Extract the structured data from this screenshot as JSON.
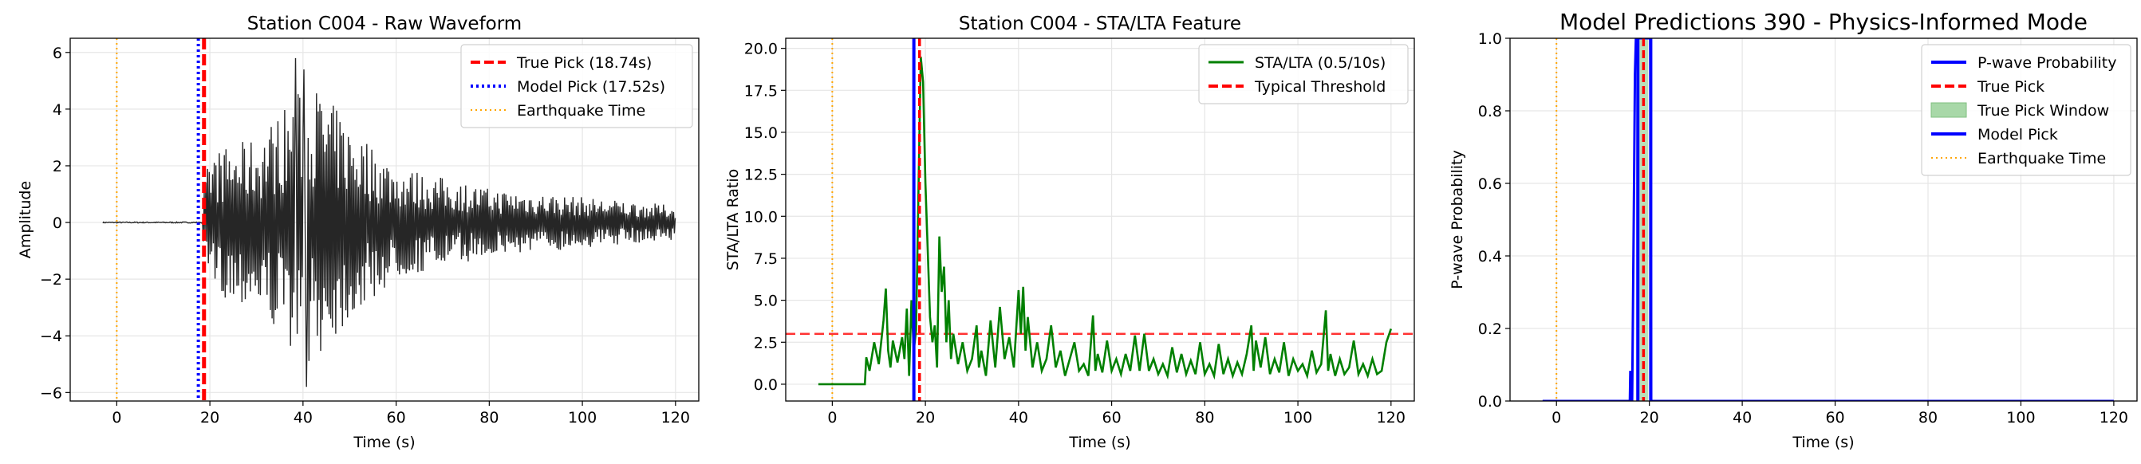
{
  "colors": {
    "raw": "#262626",
    "sta": "#008000",
    "prob": "#0000ff",
    "true_pick": "#ff0000",
    "model_pick_dotted": "#0000ff",
    "eq": "#ffa500",
    "threshold": "#ff3333",
    "window_fill": "#a8d8a8",
    "grid": "#e6e6e6"
  },
  "chart_data": [
    {
      "type": "line",
      "title": "Station C004 - Raw Waveform",
      "xlabel": "Time (s)",
      "ylabel": "Amplitude",
      "xlim": [
        -10,
        125
      ],
      "ylim": [
        -6.3,
        6.5
      ],
      "xticks": [
        0,
        20,
        40,
        60,
        80,
        100,
        120
      ],
      "yticks": [
        -6,
        -4,
        -2,
        0,
        2,
        4,
        6
      ],
      "grid": true,
      "legend_position": "top-right",
      "legend": [
        {
          "label": "True Pick (18.74s)",
          "style": "dashed-red"
        },
        {
          "label": "Model Pick (17.52s)",
          "style": "dotted-blue"
        },
        {
          "label": "Earthquake Time",
          "style": "dotted-orange"
        }
      ],
      "vlines": {
        "true_pick": 18.74,
        "model_pick": 17.52,
        "earthquake": 0
      },
      "series": [
        {
          "name": "Raw Waveform",
          "x_start": -3,
          "x_end": 120,
          "noise_until": 18.5,
          "envelope": [
            [
              18.5,
              0.8
            ],
            [
              20,
              2.5
            ],
            [
              30,
              3.0
            ],
            [
              38,
              4.5
            ],
            [
              42,
              5.0
            ],
            [
              50,
              3.5
            ],
            [
              60,
              2.0
            ],
            [
              80,
              1.2
            ],
            [
              100,
              0.9
            ],
            [
              120,
              0.6
            ]
          ],
          "peaks": [
            [
              40.7,
              -5.8
            ],
            [
              38.4,
              5.8
            ],
            [
              40.2,
              5.4
            ]
          ]
        }
      ]
    },
    {
      "type": "line",
      "title": "Station C004 - STA/LTA Feature",
      "xlabel": "Time (s)",
      "ylabel": "STA/LTA Ratio",
      "xlim": [
        -10,
        125
      ],
      "ylim": [
        -1.0,
        20.6
      ],
      "xticks": [
        0,
        20,
        40,
        60,
        80,
        100,
        120
      ],
      "yticks": [
        0.0,
        2.5,
        5.0,
        7.5,
        10.0,
        12.5,
        15.0,
        17.5,
        20.0
      ],
      "ytick_labels": [
        "0.0",
        "2.5",
        "5.0",
        "7.5",
        "10.0",
        "12.5",
        "15.0",
        "17.5",
        "20.0"
      ],
      "grid": true,
      "legend_position": "top-right",
      "legend": [
        {
          "label": "STA/LTA (0.5/10s)",
          "style": "solid-green"
        },
        {
          "label": "Typical Threshold",
          "style": "dashed-red"
        }
      ],
      "threshold": 3.0,
      "vlines": {
        "true_pick": 18.74,
        "model_pick": 17.52,
        "earthquake": 0
      },
      "series": [
        {
          "name": "STA/LTA (0.5/10s)",
          "points": [
            [
              -3,
              0
            ],
            [
              7,
              0
            ],
            [
              7.3,
              1.6
            ],
            [
              8,
              0.8
            ],
            [
              9,
              2.5
            ],
            [
              10,
              1.2
            ],
            [
              11,
              3.8
            ],
            [
              11.5,
              5.7
            ],
            [
              12,
              2.0
            ],
            [
              12.5,
              1.0
            ],
            [
              13,
              2.6
            ],
            [
              14,
              1.3
            ],
            [
              15,
              2.8
            ],
            [
              15.5,
              1.5
            ],
            [
              16,
              4.5
            ],
            [
              16.5,
              0.5
            ],
            [
              17,
              5.0
            ],
            [
              17.5,
              2.0
            ],
            [
              18,
              3.2
            ],
            [
              19,
              19.5
            ],
            [
              19.5,
              18.0
            ],
            [
              20,
              12.0
            ],
            [
              20.5,
              8.0
            ],
            [
              21,
              4.0
            ],
            [
              21.5,
              2.5
            ],
            [
              22,
              3.5
            ],
            [
              22.5,
              1.0
            ],
            [
              23,
              8.8
            ],
            [
              23.5,
              5.5
            ],
            [
              24,
              7.0
            ],
            [
              24.5,
              2.5
            ],
            [
              25,
              5.0
            ],
            [
              25.5,
              1.5
            ],
            [
              26,
              3.0
            ],
            [
              27,
              1.2
            ],
            [
              28,
              2.5
            ],
            [
              29,
              0.8
            ],
            [
              30,
              1.5
            ],
            [
              31,
              3.5
            ],
            [
              31.5,
              1.0
            ],
            [
              32,
              2.0
            ],
            [
              33,
              0.5
            ],
            [
              34,
              3.8
            ],
            [
              35,
              1.0
            ],
            [
              36,
              4.6
            ],
            [
              37,
              1.5
            ],
            [
              38,
              2.8
            ],
            [
              39,
              1.0
            ],
            [
              40,
              5.6
            ],
            [
              40.5,
              3.0
            ],
            [
              41,
              5.8
            ],
            [
              41.5,
              2.0
            ],
            [
              42,
              4.0
            ],
            [
              43,
              1.0
            ],
            [
              44,
              2.5
            ],
            [
              45,
              0.8
            ],
            [
              46,
              1.5
            ],
            [
              47,
              3.5
            ],
            [
              48,
              1.0
            ],
            [
              49,
              2.0
            ],
            [
              50,
              0.5
            ],
            [
              51,
              1.5
            ],
            [
              52,
              2.5
            ],
            [
              53,
              0.8
            ],
            [
              54,
              1.2
            ],
            [
              55,
              0.5
            ],
            [
              56,
              4.1
            ],
            [
              56.5,
              0.8
            ],
            [
              57,
              1.8
            ],
            [
              58,
              0.7
            ],
            [
              59,
              2.6
            ],
            [
              60,
              0.8
            ],
            [
              61,
              1.5
            ],
            [
              62,
              0.6
            ],
            [
              63,
              1.8
            ],
            [
              64,
              0.8
            ],
            [
              65,
              2.9
            ],
            [
              66,
              0.8
            ],
            [
              67,
              3.0
            ],
            [
              68,
              0.8
            ],
            [
              69,
              1.5
            ],
            [
              70,
              0.6
            ],
            [
              71,
              1.2
            ],
            [
              72,
              0.5
            ],
            [
              73,
              2.2
            ],
            [
              74,
              0.7
            ],
            [
              75,
              1.8
            ],
            [
              76,
              0.6
            ],
            [
              77,
              1.4
            ],
            [
              78,
              0.6
            ],
            [
              79,
              2.5
            ],
            [
              80,
              0.6
            ],
            [
              81,
              1.2
            ],
            [
              82,
              0.5
            ],
            [
              83,
              2.4
            ],
            [
              84,
              0.6
            ],
            [
              85,
              1.5
            ],
            [
              86,
              0.5
            ],
            [
              87,
              1.3
            ],
            [
              88,
              0.6
            ],
            [
              89,
              1.8
            ],
            [
              90,
              3.5
            ],
            [
              90.5,
              0.8
            ],
            [
              91,
              2.6
            ],
            [
              92,
              1.0
            ],
            [
              93,
              2.8
            ],
            [
              94,
              0.6
            ],
            [
              95,
              1.5
            ],
            [
              96,
              0.7
            ],
            [
              97,
              2.5
            ],
            [
              98,
              0.5
            ],
            [
              99,
              1.5
            ],
            [
              100,
              0.8
            ],
            [
              101,
              1.2
            ],
            [
              102,
              0.5
            ],
            [
              103,
              2.0
            ],
            [
              104,
              0.7
            ],
            [
              105,
              1.2
            ],
            [
              106,
              4.4
            ],
            [
              106.5,
              0.8
            ],
            [
              107,
              1.8
            ],
            [
              108,
              0.5
            ],
            [
              109,
              1.5
            ],
            [
              110,
              0.6
            ],
            [
              111,
              1.0
            ],
            [
              112,
              2.6
            ],
            [
              113,
              0.6
            ],
            [
              114,
              1.2
            ],
            [
              115,
              0.5
            ],
            [
              116,
              1.5
            ],
            [
              117,
              0.6
            ],
            [
              118,
              0.8
            ],
            [
              119,
              2.5
            ],
            [
              120,
              3.3
            ]
          ]
        }
      ]
    },
    {
      "type": "line",
      "title": "Model Predictions 390 - Physics-Informed Mode",
      "xlabel": "Time (s)",
      "ylabel": "P-wave Probability",
      "xlim": [
        -10,
        125
      ],
      "ylim": [
        0.0,
        1.0
      ],
      "xticks": [
        0,
        20,
        40,
        60,
        80,
        100,
        120
      ],
      "yticks": [
        0.0,
        0.2,
        0.4,
        0.6,
        0.8,
        1.0
      ],
      "ytick_labels": [
        "0.0",
        "0.2",
        "0.4",
        "0.6",
        "0.8",
        "1.0"
      ],
      "grid": true,
      "legend_position": "top-right",
      "legend": [
        {
          "label": "P-wave Probability",
          "style": "solid-blue"
        },
        {
          "label": "True Pick",
          "style": "dashed-red"
        },
        {
          "label": "True Pick Window",
          "style": "green-patch"
        },
        {
          "label": "Model Pick",
          "style": "solid-blue"
        },
        {
          "label": "Earthquake Time",
          "style": "dotted-orange"
        }
      ],
      "true_pick_window": [
        17.74,
        19.74
      ],
      "vlines": {
        "true_pick": 18.74,
        "model_pick": 17.52,
        "model_pick_2": 20.3,
        "earthquake": 0
      },
      "series": [
        {
          "name": "P-wave Probability",
          "points": [
            [
              -3,
              0
            ],
            [
              15.8,
              0
            ],
            [
              15.9,
              0.08
            ],
            [
              16.2,
              0.08
            ],
            [
              16.3,
              0
            ],
            [
              16.5,
              0.3
            ],
            [
              16.7,
              0.6
            ],
            [
              16.9,
              0.9
            ],
            [
              17.1,
              1.0
            ],
            [
              19.8,
              1.0
            ],
            [
              20.2,
              1.0
            ],
            [
              20.4,
              0.0
            ],
            [
              120,
              0
            ]
          ]
        }
      ]
    }
  ]
}
